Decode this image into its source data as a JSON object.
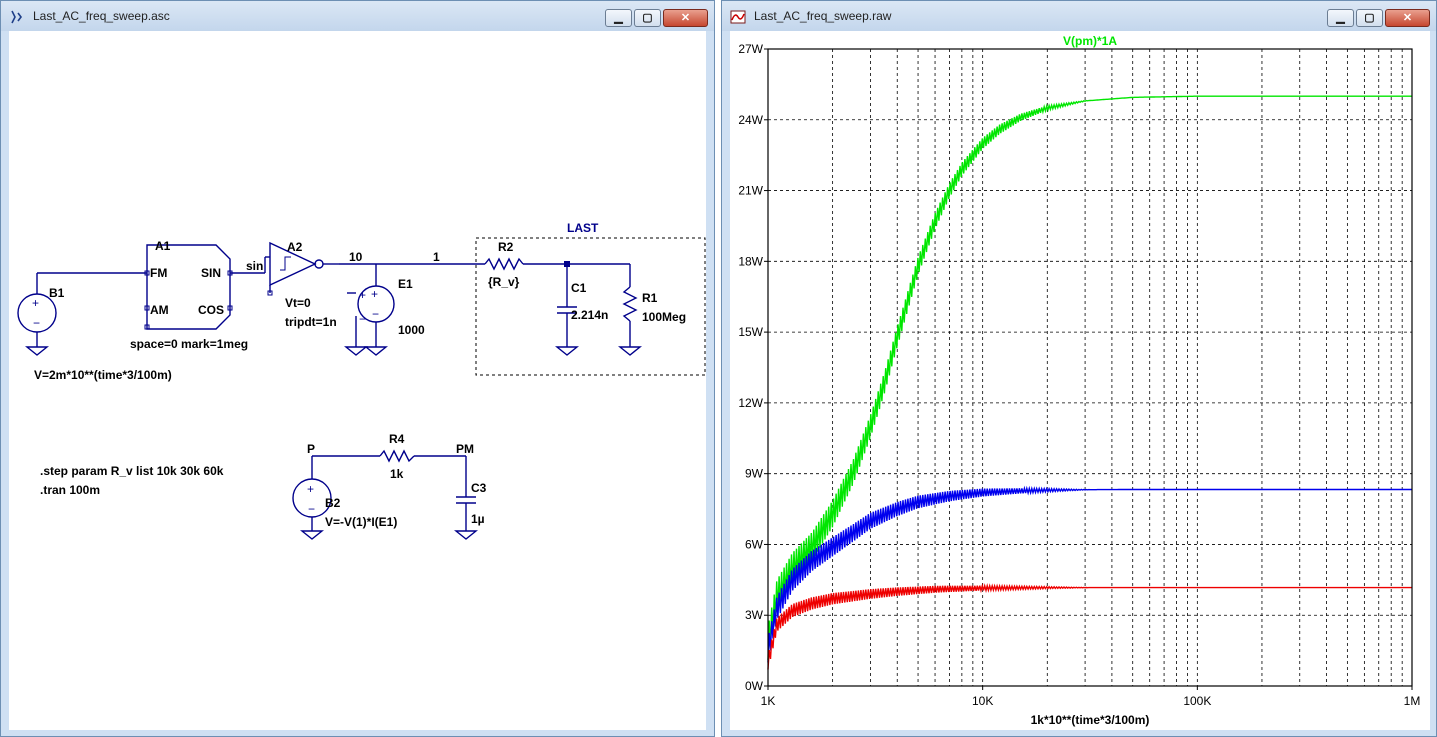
{
  "left_window": {
    "title": "Last_AC_freq_sweep.asc",
    "schematic": {
      "B1": {
        "name": "B1",
        "value": "V=2m*10**(time*3/100m)"
      },
      "A1": {
        "name": "A1",
        "pins": [
          "FM",
          "AM",
          "SIN",
          "COS"
        ],
        "params": "space=0 mark=1meg"
      },
      "net_sin": "sin",
      "A2": {
        "name": "A2",
        "vt": "Vt=0",
        "tripdt": "tripdt=1n"
      },
      "net_10": "10",
      "E1": {
        "name": "E1",
        "value": "1000"
      },
      "net_1": "1",
      "R2": {
        "name": "R2",
        "value": "{R_v}"
      },
      "C1": {
        "name": "C1",
        "value": "2.214n"
      },
      "R1": {
        "name": "R1",
        "value": "100Meg"
      },
      "last_label": "LAST",
      "step_directive": ".step param R_v list 10k 30k 60k",
      "tran_directive": ".tran 100m",
      "net_P": "P",
      "R4": {
        "name": "R4",
        "value": "1k"
      },
      "net_PM": "PM",
      "B2": {
        "name": "B2",
        "value": "V=-V(1)*I(E1)"
      },
      "C3": {
        "name": "C3",
        "value": "1µ"
      }
    }
  },
  "right_window": {
    "title": "Last_AC_freq_sweep.raw",
    "chart_data": {
      "type": "line",
      "title": "V(pm)*1A",
      "xlabel": "1k*10**(time*3/100m)",
      "ylabel": "",
      "x_scale": "log",
      "xlim": [
        1000,
        1000000
      ],
      "ylim": [
        0,
        27
      ],
      "x_ticks": [
        {
          "v": 1000,
          "label": "1K"
        },
        {
          "v": 10000,
          "label": "10K"
        },
        {
          "v": 100000,
          "label": "100K"
        },
        {
          "v": 1000000,
          "label": "1M"
        }
      ],
      "y_ticks": [
        {
          "v": 0,
          "label": "0W"
        },
        {
          "v": 3,
          "label": "3W"
        },
        {
          "v": 6,
          "label": "6W"
        },
        {
          "v": 9,
          "label": "9W"
        },
        {
          "v": 12,
          "label": "12W"
        },
        {
          "v": 15,
          "label": "15W"
        },
        {
          "v": 18,
          "label": "18W"
        },
        {
          "v": 21,
          "label": "21W"
        },
        {
          "v": 24,
          "label": "24W"
        },
        {
          "v": 27,
          "label": "27W"
        }
      ],
      "grid": true,
      "series": [
        {
          "color": "#00e600",
          "x": [
            1000,
            1100,
            1300,
            1600,
            2000,
            2500,
            3000,
            3500,
            4000,
            5000,
            6000,
            7000,
            8000,
            10000,
            12000,
            15000,
            20000,
            30000,
            50000,
            100000,
            200000,
            1000000
          ],
          "y": [
            1.8,
            3.8,
            5.0,
            5.9,
            7.3,
            9.1,
            11.0,
            12.9,
            14.8,
            17.8,
            19.7,
            21.0,
            21.9,
            23.0,
            23.6,
            24.1,
            24.5,
            24.8,
            24.95,
            25.0,
            25.0,
            25.0
          ],
          "ripple": 1.4
        },
        {
          "color": "#0000ee",
          "x": [
            1000,
            1100,
            1300,
            1600,
            2000,
            2500,
            3000,
            4000,
            5000,
            7000,
            10000,
            15000,
            20000,
            30000,
            50000,
            100000,
            1000000
          ],
          "y": [
            1.5,
            3.3,
            4.5,
            5.3,
            5.9,
            6.5,
            7.0,
            7.5,
            7.8,
            8.05,
            8.2,
            8.27,
            8.3,
            8.32,
            8.33,
            8.33,
            8.33
          ],
          "ripple": 1.0
        },
        {
          "color": "#ee0000",
          "x": [
            1000,
            1100,
            1300,
            1600,
            2000,
            3000,
            4000,
            6000,
            10000,
            20000,
            50000,
            1000000
          ],
          "y": [
            1.0,
            2.6,
            3.2,
            3.5,
            3.7,
            3.9,
            4.0,
            4.1,
            4.15,
            4.17,
            4.17,
            4.17
          ],
          "ripple": 0.6
        }
      ]
    }
  }
}
